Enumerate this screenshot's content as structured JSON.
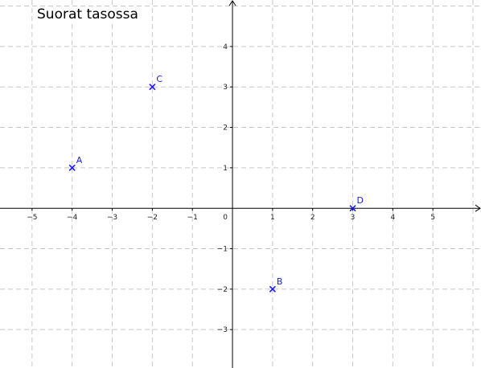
{
  "title": "Suorat tasossa",
  "chart_data": {
    "type": "scatter",
    "title": "Suorat tasossa",
    "xlabel": "",
    "ylabel": "",
    "xlim": [
      -5.8,
      6.2
    ],
    "ylim": [
      -3.95,
      5.15
    ],
    "grid": true,
    "x_ticks": [
      -5,
      -4,
      -3,
      -2,
      -1,
      1,
      2,
      3,
      4,
      5
    ],
    "y_ticks": [
      -3,
      -2,
      -1,
      1,
      2,
      3,
      4
    ],
    "origin_label": "0",
    "points": [
      {
        "label": "A",
        "x": -4,
        "y": 1
      },
      {
        "label": "C",
        "x": -2,
        "y": 3
      },
      {
        "label": "D",
        "x": 3,
        "y": 0
      },
      {
        "label": "B",
        "x": 1,
        "y": -2
      }
    ],
    "colors": {
      "points": "#1a1aff",
      "grid": "#c8c8c8",
      "axes": "#000000"
    }
  }
}
